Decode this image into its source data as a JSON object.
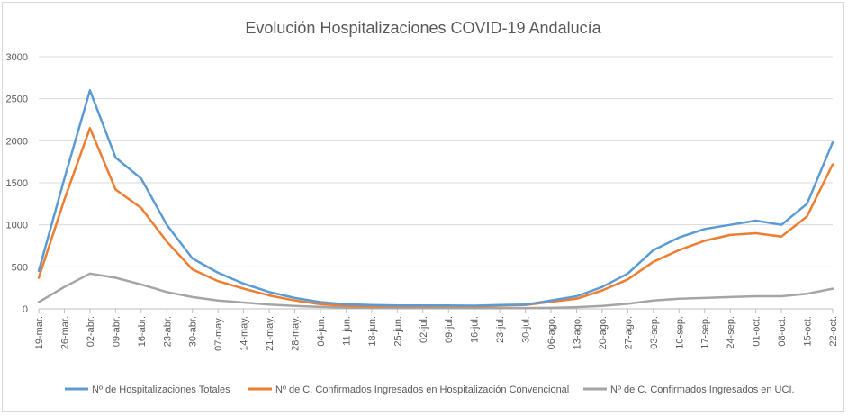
{
  "chart_data": {
    "type": "line",
    "title": "Evolución Hospitalizaciones COVID-19 Andalucía",
    "xlabel": "",
    "ylabel": "",
    "ylim": [
      0,
      3000
    ],
    "yticks": [
      0,
      500,
      1000,
      1500,
      2000,
      2500,
      3000
    ],
    "grid": "horizontal",
    "legend": "bottom",
    "categories": [
      "19-mar.",
      "26-mar.",
      "02-abr.",
      "09-abr.",
      "16-abr.",
      "23-abr.",
      "30-abr.",
      "07-may.",
      "14-may.",
      "21-may.",
      "28-may.",
      "04-jun.",
      "11-jun.",
      "18-jun.",
      "25-jun.",
      "02-jul.",
      "09-jul.",
      "16-jul.",
      "23-jul.",
      "30-jul.",
      "06-ago.",
      "13-ago.",
      "20-ago.",
      "27-ago.",
      "03-sep.",
      "10-sep.",
      "17-sep.",
      "24-sep.",
      "01-oct.",
      "08-oct.",
      "15-oct.",
      "22-oct."
    ],
    "series": [
      {
        "name": "Nº de Hospitalizaciones Totales",
        "color": "#5b9bd5",
        "values": [
          450,
          1550,
          2600,
          1800,
          1550,
          1000,
          600,
          430,
          300,
          200,
          130,
          80,
          55,
          45,
          40,
          40,
          40,
          38,
          45,
          50,
          100,
          150,
          260,
          420,
          700,
          850,
          950,
          1000,
          1050,
          1000,
          1250,
          1980
        ]
      },
      {
        "name": "Nº de C. Confirmados Ingresados en Hospitalización Convencional",
        "color": "#ed7d31",
        "values": [
          370,
          1300,
          2150,
          1420,
          1200,
          800,
          470,
          330,
          240,
          160,
          100,
          55,
          35,
          30,
          30,
          30,
          32,
          30,
          38,
          45,
          85,
          120,
          220,
          350,
          560,
          700,
          810,
          880,
          900,
          860,
          1100,
          1720
        ]
      },
      {
        "name": "Nº de C. Confirmados Ingresados en UCI.",
        "color": "#a5a5a5",
        "values": [
          80,
          260,
          420,
          370,
          290,
          200,
          140,
          100,
          75,
          50,
          35,
          22,
          15,
          12,
          10,
          10,
          10,
          8,
          8,
          10,
          12,
          20,
          35,
          60,
          100,
          120,
          130,
          140,
          150,
          150,
          180,
          240
        ]
      }
    ]
  }
}
